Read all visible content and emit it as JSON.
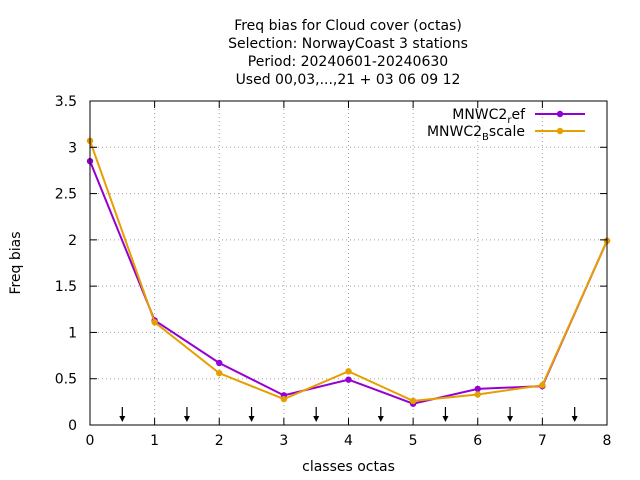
{
  "chart_data": {
    "type": "line",
    "title_lines": [
      "Freq bias  for Cloud cover (octas)",
      "Selection: NorwayCoast      3 stations",
      "Period: 20240601-20240630",
      "Used 00,03,...,21 + 03 06 09 12"
    ],
    "xlabel": "classes octas",
    "ylabel": "Freq bias",
    "xlim": [
      0,
      8
    ],
    "ylim": [
      0,
      3.5
    ],
    "x_ticks": [
      0,
      1,
      2,
      3,
      4,
      5,
      6,
      7,
      8
    ],
    "x_tick_labels": [
      "0",
      "1",
      "2",
      "3",
      "4",
      "5",
      "6",
      "7",
      "8"
    ],
    "y_ticks": [
      0,
      0.5,
      1,
      1.5,
      2,
      2.5,
      3,
      3.5
    ],
    "y_tick_labels": [
      "0",
      "0.5",
      "1",
      "1.5",
      "2",
      "2.5",
      "3",
      "3.5"
    ],
    "grid": true,
    "legend_position": "top-right",
    "x": [
      0,
      1,
      2,
      3,
      4,
      5,
      6,
      7,
      8
    ],
    "series": [
      {
        "name_base": "MNWC2",
        "name_sub": "r",
        "name_rest": "ef",
        "color": "#9400d3",
        "values": [
          2.85,
          1.13,
          0.67,
          0.32,
          0.49,
          0.23,
          0.39,
          0.42,
          1.99
        ]
      },
      {
        "name_base": "MNWC2",
        "name_sub": "B",
        "name_rest": "scale",
        "color": "#e69f00",
        "values": [
          3.07,
          1.11,
          0.56,
          0.28,
          0.58,
          0.26,
          0.33,
          0.43,
          1.99
        ]
      }
    ],
    "arrow_markers_x": [
      0.5,
      1.5,
      2.5,
      3.5,
      4.5,
      5.5,
      6.5,
      7.5
    ]
  }
}
